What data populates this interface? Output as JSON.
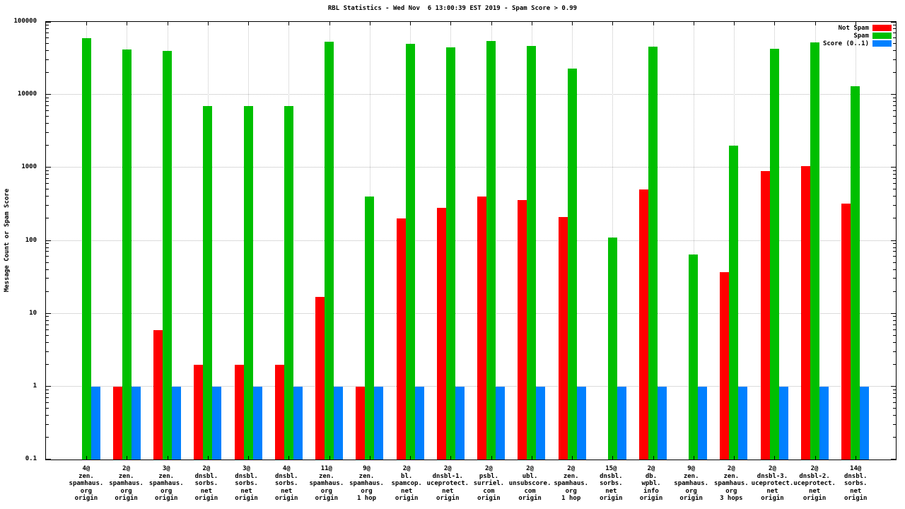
{
  "chart_data": {
    "type": "bar",
    "title": "RBL Statistics - Wed Nov  6 13:00:39 EST 2019 - Spam Score > 0.99",
    "ylabel": "Message Count or Spam Score",
    "xlabel": "",
    "y_scale": "log",
    "ylim": [
      0.1,
      100000
    ],
    "ytick_labels": [
      "100000",
      "10000",
      "1000",
      "100",
      "10",
      "1",
      "0.1"
    ],
    "grid": true,
    "legend_position": "top-right",
    "background": "#ffffff",
    "categories": [
      "4@\nzen.\nspamhaus.\norg\norigin",
      "2@\nzen.\nspamhaus.\norg\norigin",
      "3@\nzen.\nspamhaus.\norg\norigin",
      "2@\ndnsbl.\nsorbs.\nnet\norigin",
      "3@\ndnsbl.\nsorbs.\nnet\norigin",
      "4@\ndnsbl.\nsorbs.\nnet\norigin",
      "11@\nzen.\nspamhaus.\norg\norigin",
      "9@\nzen.\nspamhaus.\norg\n1 hop",
      "2@\nbl.\nspamcop.\nnet\norigin",
      "2@\ndnsbl-1.\nuceprotect.\nnet\norigin",
      "2@\npsbl.\nsurriel.\ncom\norigin",
      "2@\nubl.\nunsubscore.\ncom\norigin",
      "2@\nzen.\nspamhaus.\norg\n1 hop",
      "15@\ndnsbl.\nsorbs.\nnet\norigin",
      "2@\ndb.\nwpbl.\ninfo\norigin",
      "9@\nzen.\nspamhaus.\norg\norigin",
      "2@\nzen.\nspamhaus.\norg\n3 hops",
      "2@\ndnsbl-3.\nuceprotect.\nnet\norigin",
      "2@\ndnsbl-2.\nuceprotect.\nnet\norigin",
      "14@\ndnsbl.\nsorbs.\nnet\norigin"
    ],
    "series": [
      {
        "name": "Not Spam",
        "color": "#ff0000",
        "values": [
          0,
          1,
          6,
          2,
          2,
          2,
          17,
          1,
          200,
          280,
          400,
          360,
          210,
          0,
          500,
          0,
          37,
          900,
          1050,
          320
        ]
      },
      {
        "name": "Spam",
        "color": "#00bf00",
        "values": [
          60000,
          42000,
          40000,
          7000,
          7000,
          7000,
          53000,
          400,
          50000,
          45000,
          55000,
          47000,
          23000,
          110,
          46000,
          65,
          2000,
          43000,
          52000,
          13000
        ]
      },
      {
        "name": "Score (0..1)",
        "color": "#0080ff",
        "values": [
          1,
          1,
          1,
          1,
          1,
          1,
          1,
          1,
          1,
          1,
          1,
          1,
          1,
          1,
          1,
          1,
          1,
          1,
          1,
          1
        ]
      }
    ]
  }
}
